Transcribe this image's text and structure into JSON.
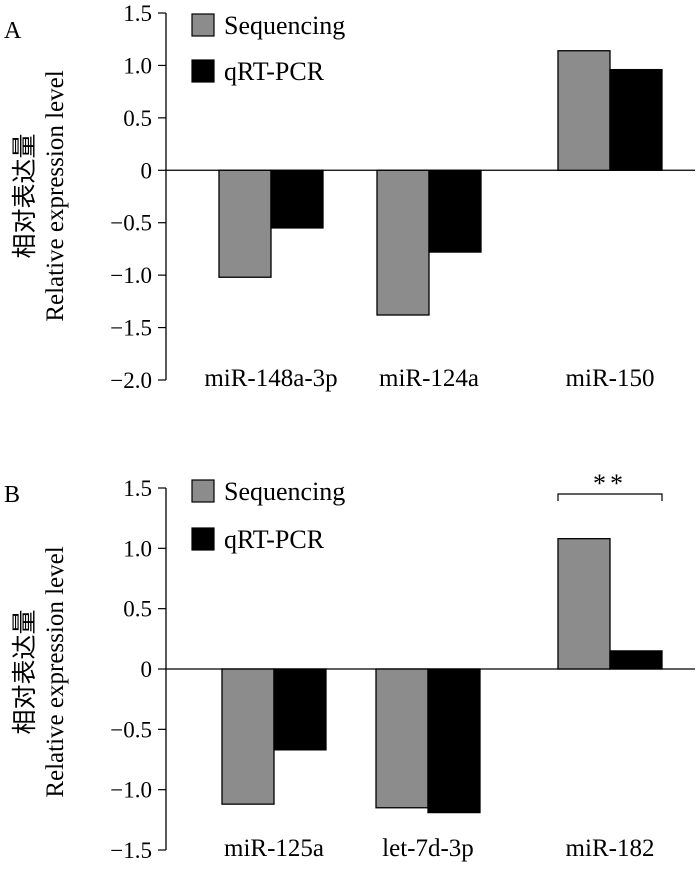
{
  "chart_data": [
    {
      "type": "bar",
      "panel_label": "A",
      "ylabel_cn": "相对表达量",
      "ylabel_en": "Relative expression level",
      "categories": [
        "miR-148a-3p",
        "miR-124a",
        "miR-150"
      ],
      "series": [
        {
          "name": "Sequencing",
          "color": "#8c8c8c",
          "values": [
            -1.02,
            -1.38,
            1.14
          ]
        },
        {
          "name": "qRT-PCR",
          "color": "#000000",
          "values": [
            -0.55,
            -0.78,
            0.96
          ]
        }
      ],
      "yticks": [
        1.5,
        1.0,
        0.5,
        0,
        -0.5,
        -1.0,
        -1.5,
        -2.0
      ],
      "ytick_labels": [
        "1.5",
        "1.0",
        "0.5",
        "0",
        "−0.5",
        "−1.0",
        "−1.5",
        "−2.0"
      ],
      "ylim": [
        -2.0,
        1.5
      ],
      "legend": "top-left",
      "grid": false
    },
    {
      "type": "bar",
      "panel_label": "B",
      "ylabel_cn": "相对表达量",
      "ylabel_en": "Relative expression level",
      "categories": [
        "miR-125a",
        "let-7d-3p",
        "miR-182"
      ],
      "series": [
        {
          "name": "Sequencing",
          "color": "#8c8c8c",
          "values": [
            -1.12,
            -1.15,
            1.08
          ]
        },
        {
          "name": "qRT-PCR",
          "color": "#000000",
          "values": [
            -0.67,
            -1.19,
            0.15
          ]
        }
      ],
      "yticks": [
        1.5,
        1.0,
        0.5,
        0,
        -0.5,
        -1.0,
        -1.5
      ],
      "ytick_labels": [
        "1.5",
        "1.0",
        "0.5",
        "0",
        "−0.5",
        "−1.0",
        "−1.5"
      ],
      "ylim": [
        -1.5,
        1.5
      ],
      "legend": "top-left",
      "grid": false,
      "annotation": {
        "text": "**",
        "category_index": 2
      }
    }
  ]
}
